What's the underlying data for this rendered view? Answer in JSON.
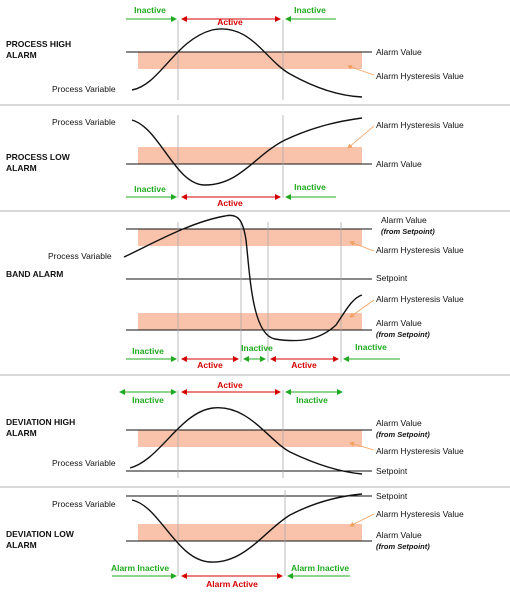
{
  "colors": {
    "active": "#d40000",
    "inactive": "#1faa1f",
    "band": "#f9c3ab",
    "orange": "#f2a060",
    "grid": "#aaaaaa",
    "line": "#111111",
    "divider": "#b0b0b0"
  },
  "sections": [
    {
      "title_line1": "PROCESS HIGH",
      "title_line2": "ALARM",
      "labels": {
        "process_variable": "Process Variable",
        "alarm_value": "Alarm Value",
        "hysteresis": "Alarm Hysteresis Value"
      },
      "states": [
        {
          "text": "Inactive",
          "kind": "inactive"
        },
        {
          "text": "Active",
          "kind": "active"
        },
        {
          "text": "Inactive",
          "kind": "inactive"
        }
      ]
    },
    {
      "title_line1": "PROCESS LOW",
      "title_line2": "ALARM",
      "labels": {
        "process_variable": "Process Variable",
        "alarm_value": "Alarm Value",
        "hysteresis": "Alarm Hysteresis Value"
      },
      "states": [
        {
          "text": "Inactive",
          "kind": "inactive"
        },
        {
          "text": "Active",
          "kind": "active"
        },
        {
          "text": "Inactive",
          "kind": "inactive"
        }
      ]
    },
    {
      "title_line1": "BAND ALARM",
      "labels": {
        "process_variable": "Process Variable",
        "alarm_value_upper": "Alarm Value",
        "alarm_value_upper_note": "(from Setpoint)",
        "hysteresis_upper": "Alarm Hysteresis Value",
        "setpoint": "Setpoint",
        "hysteresis_lower": "Alarm Hysteresis Value",
        "alarm_value_lower": "Alarm Value",
        "alarm_value_lower_note": "(from Setpoint)"
      },
      "states": [
        {
          "text": "Inactive",
          "kind": "inactive"
        },
        {
          "text": "Active",
          "kind": "active"
        },
        {
          "text": "Inactive",
          "kind": "inactive"
        },
        {
          "text": "Active",
          "kind": "active"
        },
        {
          "text": "Inactive",
          "kind": "inactive"
        }
      ]
    },
    {
      "title_line1": "DEVIATION HIGH",
      "title_line2": "ALARM",
      "labels": {
        "process_variable": "Process Variable",
        "alarm_value": "Alarm Value",
        "alarm_value_note": "(from Setpoint)",
        "hysteresis": "Alarm Hysteresis Value",
        "setpoint": "Setpoint"
      },
      "states": [
        {
          "text": "Inactive",
          "kind": "inactive"
        },
        {
          "text": "Active",
          "kind": "active"
        },
        {
          "text": "Inactive",
          "kind": "inactive"
        }
      ]
    },
    {
      "title_line1": "DEVIATION LOW",
      "title_line2": "ALARM",
      "labels": {
        "process_variable": "Process Variable",
        "setpoint": "Setpoint",
        "hysteresis": "Alarm Hysteresis Value",
        "alarm_value": "Alarm Value",
        "alarm_value_note": "(from Setpoint)"
      },
      "states": [
        {
          "text": "Alarm Inactive",
          "kind": "inactive"
        },
        {
          "text": "Alarm Active",
          "kind": "active"
        },
        {
          "text": "Alarm Inactive",
          "kind": "inactive"
        }
      ]
    }
  ]
}
